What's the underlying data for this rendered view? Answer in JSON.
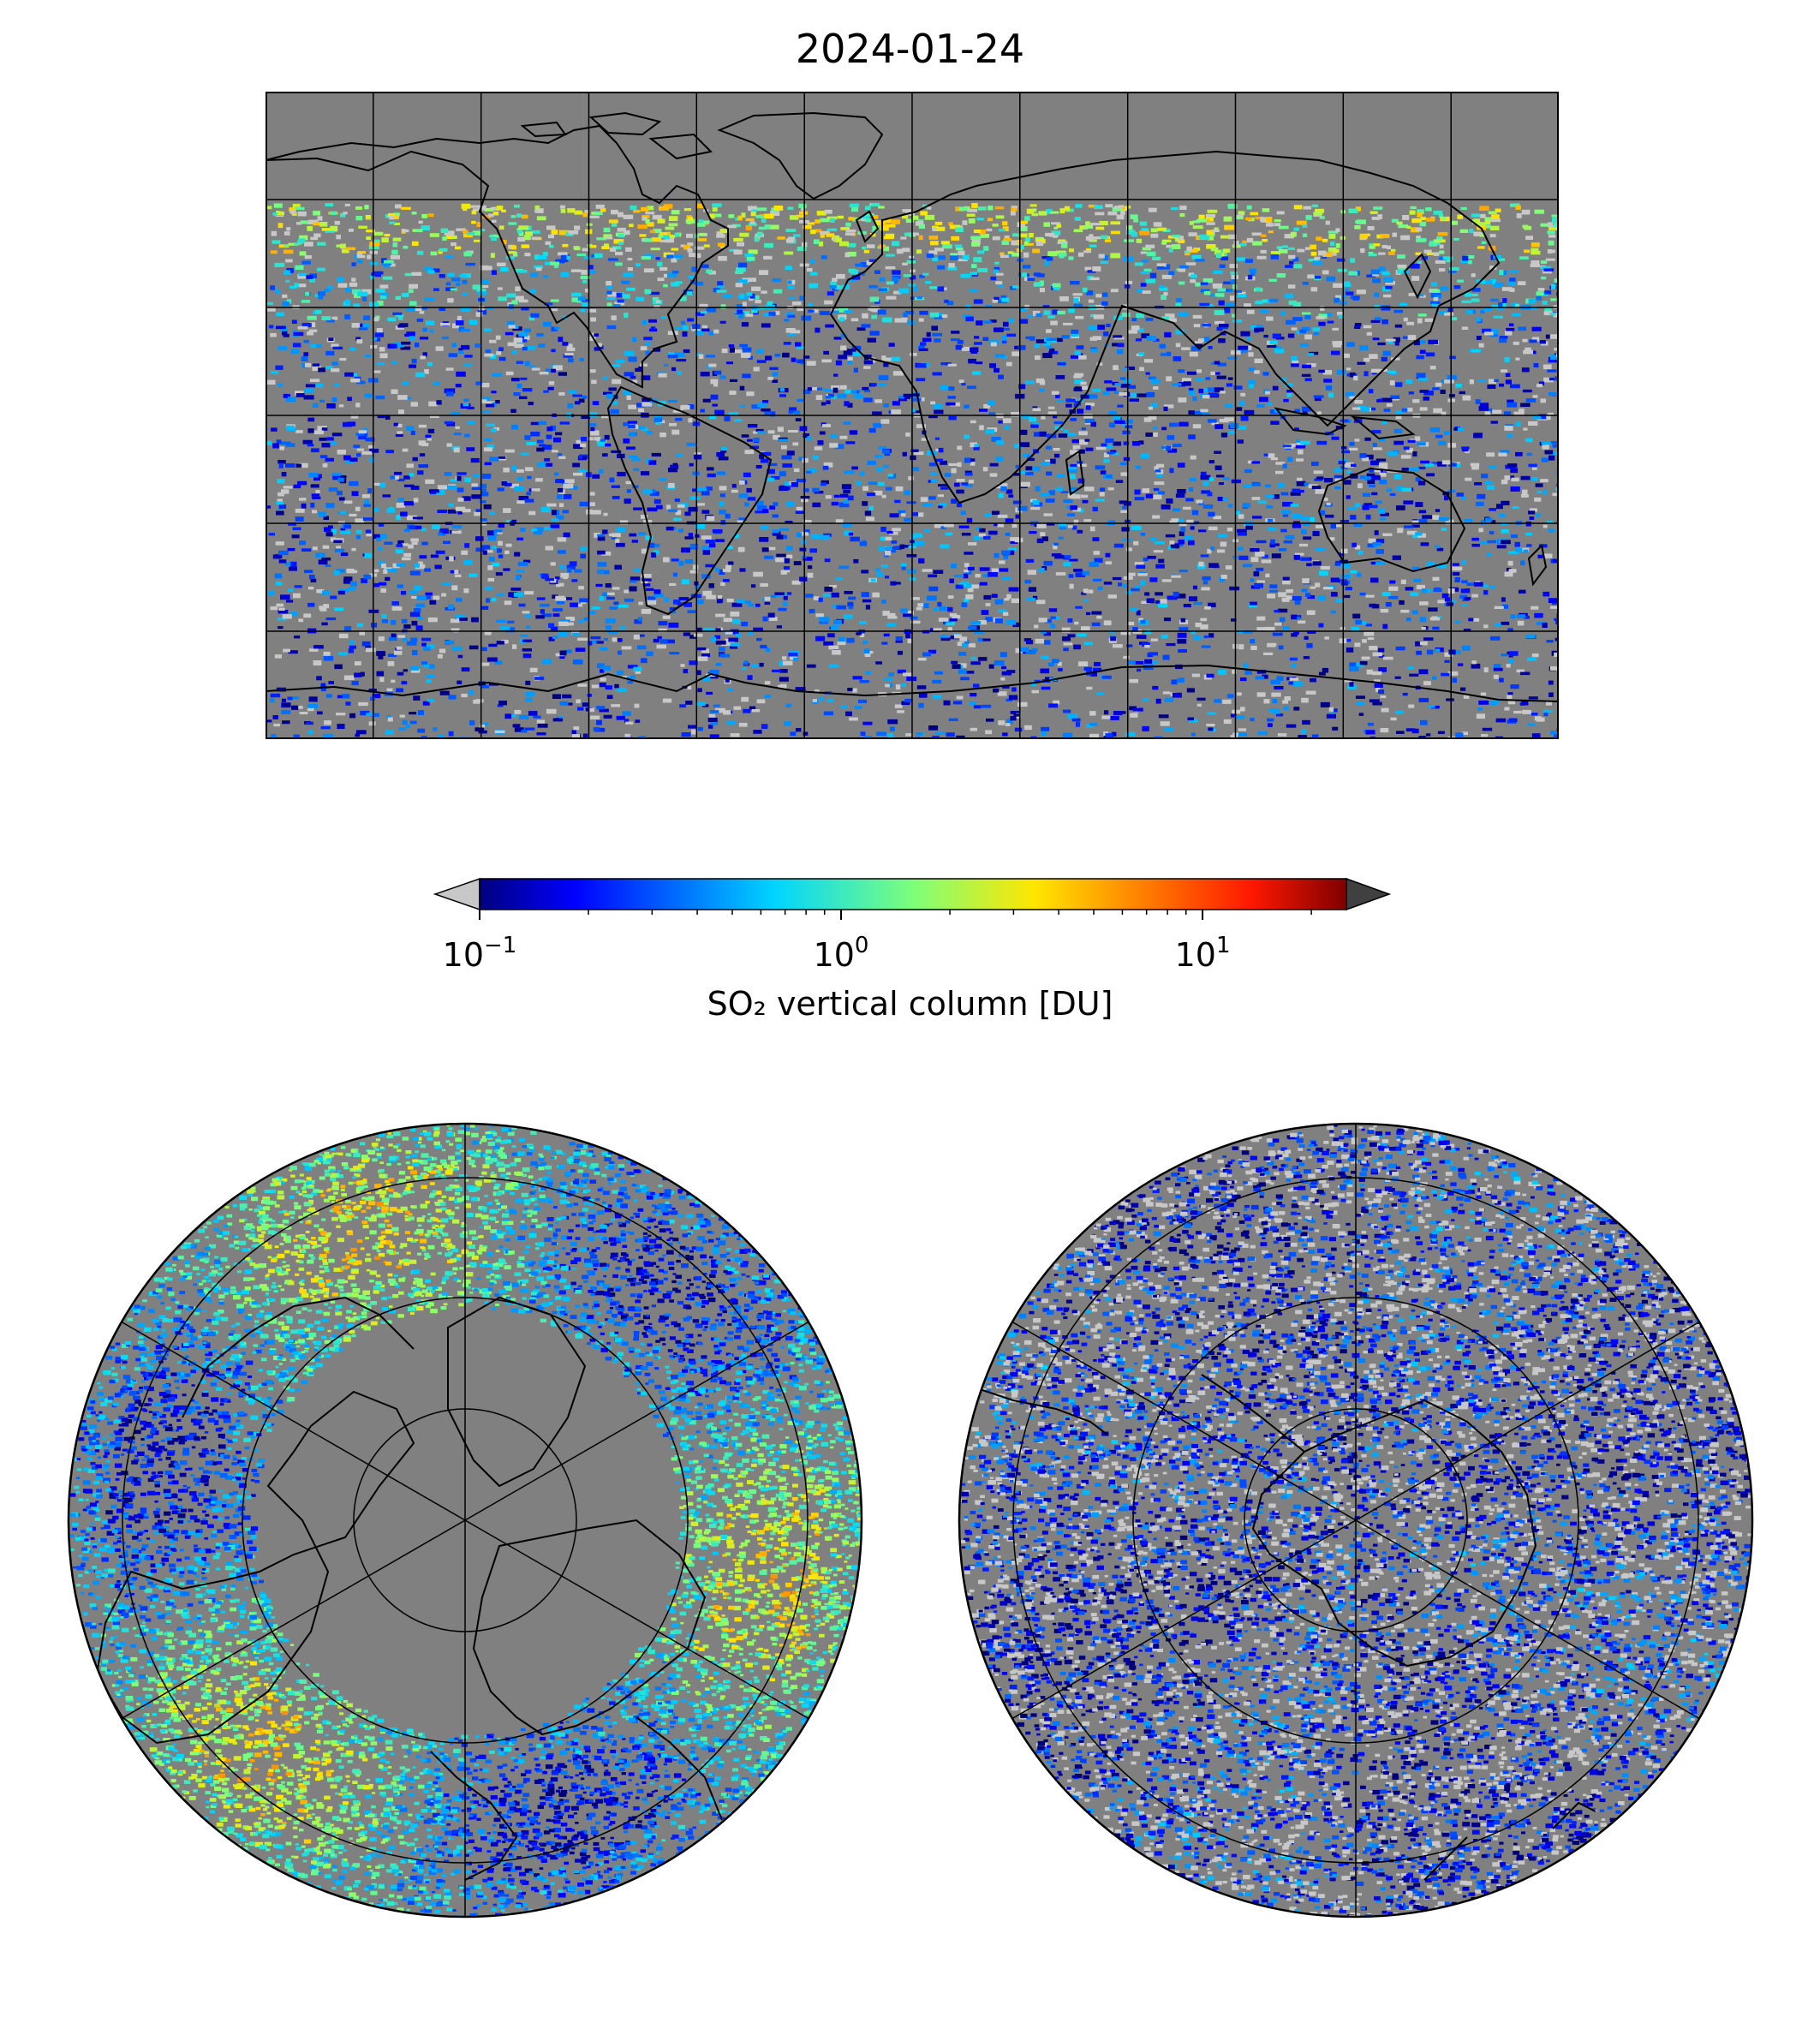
{
  "title": "2024-01-24",
  "colorbar": {
    "label": "SO₂ vertical column [DU]",
    "scale": "log",
    "range": [
      0.1,
      25
    ],
    "extend": "both",
    "colormap": "jet",
    "under_color": "#c8c8c8",
    "over_color": "#404040",
    "ticks": [
      {
        "value": 0.1,
        "base": "10",
        "exp": "−1"
      },
      {
        "value": 1,
        "base": "10",
        "exp": "0"
      },
      {
        "value": 10,
        "base": "10",
        "exp": "1"
      }
    ]
  },
  "maps": {
    "world": {
      "projection": "plate carree",
      "gridlines": true,
      "background": "#808080"
    },
    "north_pole": {
      "projection": "north polar stereographic",
      "gridlines": true
    },
    "south_pole": {
      "projection": "south polar stereographic",
      "gridlines": true
    }
  },
  "colors": {
    "no_data": "#808080",
    "below_range": "#c8c8c8",
    "coastline": "#000000"
  }
}
